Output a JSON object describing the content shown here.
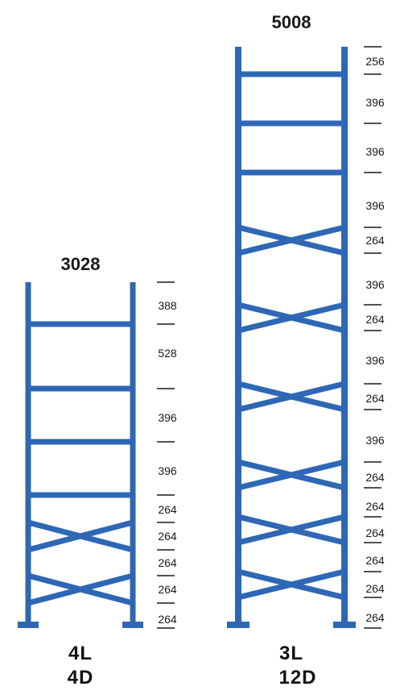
{
  "colors": {
    "frame": "#2e67b5",
    "tick": "#1a1a1a",
    "text": "#1a1a1a"
  },
  "frames": [
    {
      "id": "left-frame",
      "height_label": "3028",
      "config_line1": "4L",
      "config_line2": "4D",
      "dimensions": [
        "388",
        "528",
        "396",
        "396",
        "264",
        "264",
        "264",
        "264",
        "264"
      ],
      "beam_count": 4,
      "diagonal_count": 4
    },
    {
      "id": "right-frame",
      "height_label": "5008",
      "config_line1": "3L",
      "config_line2": "12D",
      "dimensions": [
        "256",
        "396",
        "396",
        "396",
        "264",
        "396",
        "264",
        "396",
        "264",
        "396",
        "264",
        "264",
        "264",
        "264",
        "264",
        "264"
      ],
      "beam_count": 3,
      "diagonal_count": 12
    }
  ]
}
